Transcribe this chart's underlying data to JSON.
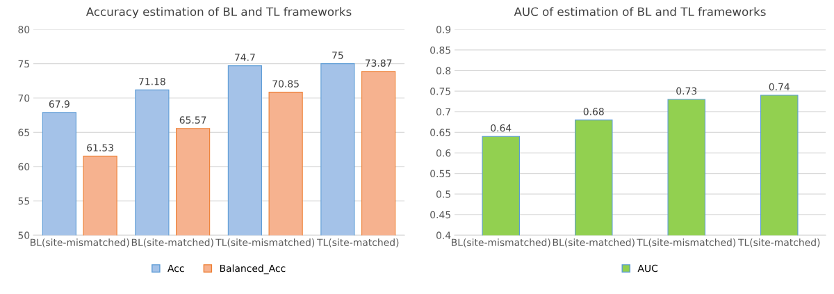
{
  "chart_data": [
    {
      "type": "bar",
      "title": "Accuracy estimation of BL and TL frameworks",
      "categories": [
        "BL(site-mismatched)",
        "BL(site-matched)",
        "TL(site-mismatched)",
        "TL(site-matched)"
      ],
      "series": [
        {
          "name": "Acc",
          "color": "#a4c2e8",
          "values": [
            67.9,
            71.18,
            74.7,
            75
          ]
        },
        {
          "name": "Balanced_Acc",
          "color": "#f6b28f",
          "values": [
            61.53,
            65.57,
            70.85,
            73.87
          ]
        }
      ],
      "ylim": [
        50,
        80
      ],
      "yticks": [
        50,
        55,
        60,
        65,
        70,
        75,
        80
      ],
      "grid": "y",
      "legend": "bottom",
      "data_labels": true
    },
    {
      "type": "bar",
      "title": "AUC of estimation of BL and TL frameworks",
      "categories": [
        "BL(site-mismatched)",
        "BL(site-matched)",
        "TL(site-mismatched)",
        "TL(site-matched)"
      ],
      "series": [
        {
          "name": "AUC",
          "color": "#92d050",
          "values": [
            0.64,
            0.68,
            0.73,
            0.74
          ]
        }
      ],
      "ylim": [
        0.4,
        0.9
      ],
      "yticks": [
        0.4,
        0.45,
        0.5,
        0.55,
        0.6,
        0.65,
        0.7,
        0.75,
        0.8,
        0.85,
        0.9
      ],
      "grid": "y",
      "legend": "bottom",
      "data_labels": true
    }
  ]
}
